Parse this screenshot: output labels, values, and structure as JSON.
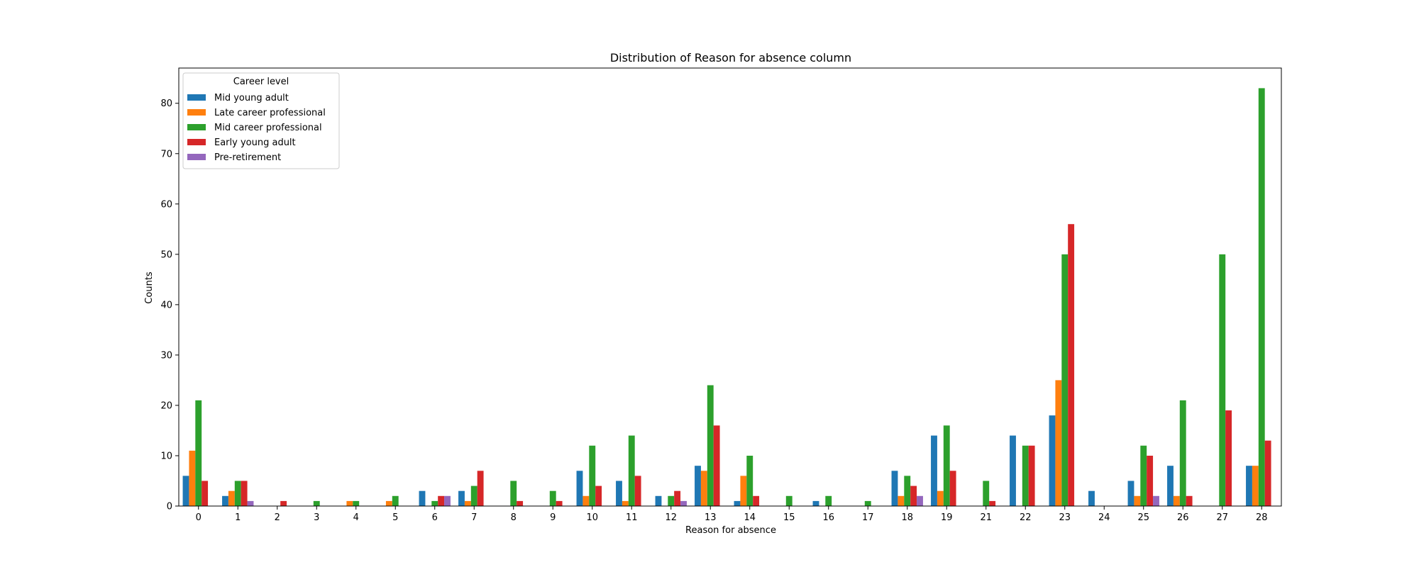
{
  "chart_data": {
    "type": "bar",
    "title": "Distribution of Reason for absence column",
    "xlabel": "Reason for absence",
    "ylabel": "Counts",
    "ylim": [
      0,
      87
    ],
    "yticks": [
      0,
      10,
      20,
      30,
      40,
      50,
      60,
      70,
      80
    ],
    "grid": false,
    "legend": {
      "title": "Career level",
      "placement": "top-left"
    },
    "categories": [
      "0",
      "1",
      "2",
      "3",
      "4",
      "5",
      "6",
      "7",
      "8",
      "9",
      "10",
      "11",
      "12",
      "13",
      "14",
      "15",
      "16",
      "17",
      "18",
      "19",
      "21",
      "22",
      "23",
      "24",
      "25",
      "26",
      "27",
      "28"
    ],
    "series": [
      {
        "name": "Mid young adult",
        "color": "#1f77b4",
        "values": [
          6,
          2,
          0,
          0,
          0,
          0,
          3,
          3,
          0,
          0,
          7,
          5,
          2,
          8,
          1,
          0,
          1,
          0,
          7,
          14,
          0,
          14,
          18,
          3,
          5,
          8,
          0,
          8
        ]
      },
      {
        "name": "Late career professional",
        "color": "#ff7f0e",
        "values": [
          11,
          3,
          0,
          0,
          1,
          1,
          0,
          1,
          0,
          0,
          2,
          1,
          0,
          7,
          6,
          0,
          0,
          0,
          2,
          3,
          0,
          0,
          25,
          0,
          2,
          2,
          0,
          8
        ]
      },
      {
        "name": "Mid career professional",
        "color": "#2ca02c",
        "values": [
          21,
          5,
          0,
          1,
          1,
          2,
          1,
          4,
          5,
          3,
          12,
          14,
          2,
          24,
          10,
          2,
          2,
          1,
          6,
          16,
          5,
          12,
          50,
          0,
          12,
          21,
          50,
          83
        ]
      },
      {
        "name": "Early young adult",
        "color": "#d62728",
        "values": [
          5,
          5,
          1,
          0,
          0,
          0,
          2,
          7,
          1,
          1,
          4,
          6,
          3,
          16,
          2,
          0,
          0,
          0,
          4,
          7,
          1,
          12,
          56,
          0,
          10,
          2,
          19,
          13
        ]
      },
      {
        "name": "Pre-retirement",
        "color": "#9467bd",
        "values": [
          0,
          1,
          0,
          0,
          0,
          0,
          2,
          0,
          0,
          0,
          0,
          0,
          1,
          0,
          0,
          0,
          0,
          0,
          2,
          0,
          0,
          0,
          0,
          0,
          2,
          0,
          0,
          0
        ]
      }
    ]
  }
}
